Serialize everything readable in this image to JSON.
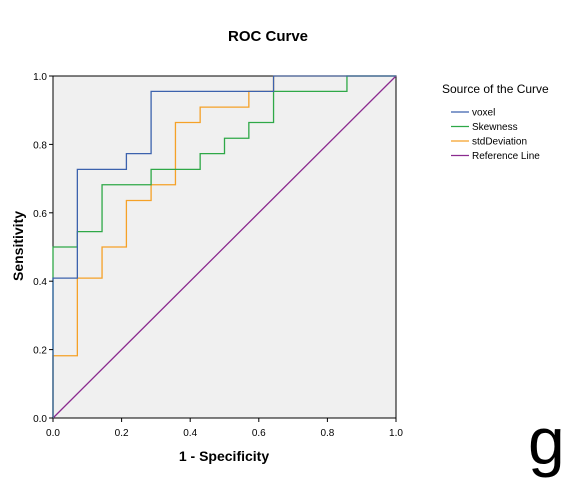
{
  "chart_data": {
    "type": "line",
    "title": "ROC Curve",
    "xlabel": "1 - Specificity",
    "ylabel": "Sensitivity",
    "xlim": [
      0,
      1
    ],
    "ylim": [
      0,
      1
    ],
    "xticks": [
      "0.0",
      "0.2",
      "0.4",
      "0.6",
      "0.8",
      "1.0"
    ],
    "yticks": [
      "0.0",
      "0.2",
      "0.4",
      "0.6",
      "0.8",
      "1.0"
    ],
    "grid": false,
    "plot_background": "#f0f0f0",
    "legend": {
      "title": "Source of the Curve",
      "position": "right"
    },
    "series": [
      {
        "name": "voxel",
        "color": "#3c62ad",
        "x": [
          0,
          0,
          0.071,
          0.071,
          0.214,
          0.214,
          0.286,
          0.286,
          0.571,
          0.571,
          0.643,
          0.643,
          1.0
        ],
        "y": [
          0,
          0.409,
          0.409,
          0.727,
          0.727,
          0.773,
          0.773,
          0.955,
          0.955,
          0.955,
          0.955,
          1.0,
          1.0
        ]
      },
      {
        "name": "Skewness",
        "color": "#2ea847",
        "x": [
          0,
          0,
          0.071,
          0.071,
          0.143,
          0.143,
          0.286,
          0.286,
          0.429,
          0.429,
          0.5,
          0.5,
          0.571,
          0.571,
          0.643,
          0.643,
          0.857,
          0.857,
          1.0
        ],
        "y": [
          0,
          0.5,
          0.5,
          0.545,
          0.545,
          0.682,
          0.682,
          0.727,
          0.727,
          0.773,
          0.773,
          0.818,
          0.818,
          0.864,
          0.864,
          0.955,
          0.955,
          1.0,
          1.0
        ]
      },
      {
        "name": "stdDeviation",
        "color": "#f5a127",
        "x": [
          0,
          0,
          0.071,
          0.071,
          0.143,
          0.143,
          0.214,
          0.214,
          0.286,
          0.286,
          0.357,
          0.357,
          0.429,
          0.429,
          0.571,
          0.571,
          0.643,
          0.643,
          1.0
        ],
        "y": [
          0,
          0.182,
          0.182,
          0.409,
          0.409,
          0.5,
          0.5,
          0.636,
          0.636,
          0.682,
          0.682,
          0.864,
          0.864,
          0.909,
          0.909,
          0.955,
          0.955,
          1.0,
          1.0
        ]
      },
      {
        "name": "Reference Line",
        "color": "#8b2b8f",
        "x": [
          0,
          1
        ],
        "y": [
          0,
          1
        ]
      }
    ]
  },
  "panel_letter": "g"
}
